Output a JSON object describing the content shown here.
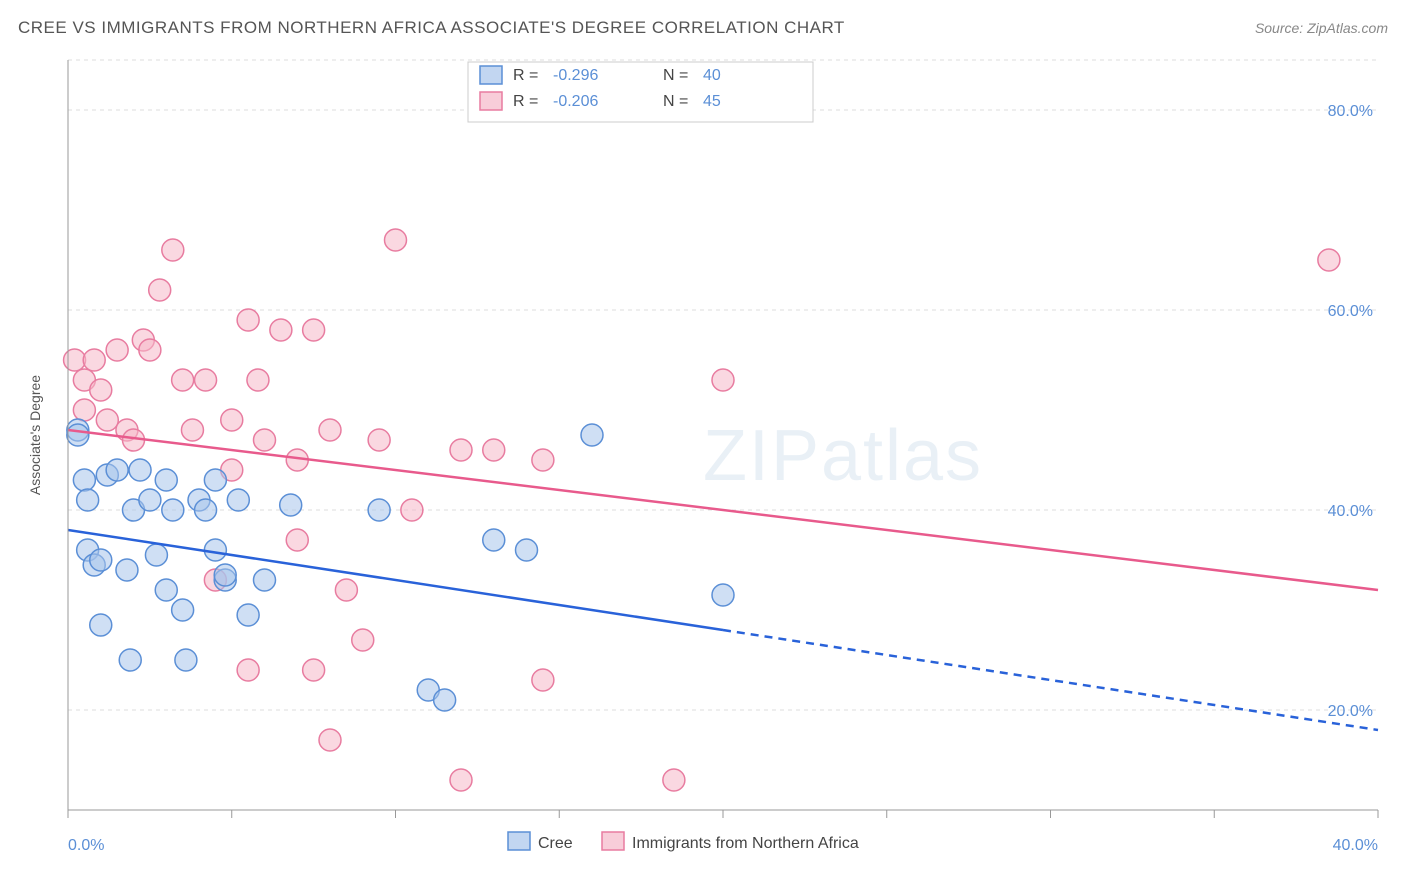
{
  "title": "CREE VS IMMIGRANTS FROM NORTHERN AFRICA ASSOCIATE'S DEGREE CORRELATION CHART",
  "source": "Source: ZipAtlas.com",
  "watermark": "ZIPatlas",
  "y_axis_label": "Associate's Degree",
  "chart": {
    "type": "scatter",
    "background_color": "#ffffff",
    "grid_color": "#dddddd",
    "axis_color": "#999999",
    "tick_label_color": "#5b8fd6",
    "xlim": [
      0,
      40
    ],
    "ylim": [
      10,
      85
    ],
    "x_ticks": [
      0,
      40
    ],
    "x_tick_labels": [
      "0.0%",
      "40.0%"
    ],
    "y_ticks": [
      20,
      40,
      60,
      80
    ],
    "y_tick_labels": [
      "20.0%",
      "40.0%",
      "60.0%",
      "80.0%"
    ],
    "minor_x_ticks": [
      5,
      10,
      15,
      20,
      25,
      30,
      35
    ],
    "series": [
      {
        "name": "Cree",
        "fill_color": "#a8c5eb",
        "stroke_color": "#5b8fd6",
        "fill_opacity": 0.55,
        "marker_radius": 11,
        "line_color": "#2962d9",
        "line_width": 2.5,
        "trend_start": {
          "x": 0,
          "y": 38
        },
        "trend_end_solid": {
          "x": 20,
          "y": 28
        },
        "trend_end_dashed": {
          "x": 40,
          "y": 18
        },
        "R": "-0.296",
        "N": "40",
        "points": [
          {
            "x": 0.3,
            "y": 48
          },
          {
            "x": 0.3,
            "y": 47.5
          },
          {
            "x": 0.5,
            "y": 43
          },
          {
            "x": 0.6,
            "y": 41
          },
          {
            "x": 0.6,
            "y": 36
          },
          {
            "x": 0.8,
            "y": 34.5
          },
          {
            "x": 1.0,
            "y": 35
          },
          {
            "x": 1.0,
            "y": 28.5
          },
          {
            "x": 1.2,
            "y": 43.5
          },
          {
            "x": 1.5,
            "y": 44
          },
          {
            "x": 1.8,
            "y": 34
          },
          {
            "x": 1.9,
            "y": 25
          },
          {
            "x": 2.0,
            "y": 40
          },
          {
            "x": 2.2,
            "y": 44
          },
          {
            "x": 2.5,
            "y": 41
          },
          {
            "x": 2.7,
            "y": 35.5
          },
          {
            "x": 3.0,
            "y": 43
          },
          {
            "x": 3.0,
            "y": 32
          },
          {
            "x": 3.2,
            "y": 40
          },
          {
            "x": 3.5,
            "y": 30
          },
          {
            "x": 3.6,
            "y": 25
          },
          {
            "x": 4.0,
            "y": 41
          },
          {
            "x": 4.2,
            "y": 40
          },
          {
            "x": 4.5,
            "y": 43
          },
          {
            "x": 4.5,
            "y": 36
          },
          {
            "x": 4.8,
            "y": 33
          },
          {
            "x": 4.8,
            "y": 33.5
          },
          {
            "x": 5.2,
            "y": 41
          },
          {
            "x": 5.5,
            "y": 29.5
          },
          {
            "x": 6.0,
            "y": 33
          },
          {
            "x": 6.8,
            "y": 40.5
          },
          {
            "x": 9.5,
            "y": 40
          },
          {
            "x": 11.0,
            "y": 22
          },
          {
            "x": 11.5,
            "y": 21
          },
          {
            "x": 13.0,
            "y": 37
          },
          {
            "x": 14.0,
            "y": 36
          },
          {
            "x": 16.0,
            "y": 47.5
          },
          {
            "x": 20.0,
            "y": 31.5
          }
        ]
      },
      {
        "name": "Immigrants from Northern Africa",
        "fill_color": "#f5b8c9",
        "stroke_color": "#e87ca0",
        "fill_opacity": 0.55,
        "marker_radius": 11,
        "line_color": "#e85a8c",
        "line_width": 2.5,
        "trend_start": {
          "x": 0,
          "y": 48
        },
        "trend_end_solid": {
          "x": 40,
          "y": 32
        },
        "R": "-0.206",
        "N": "45",
        "points": [
          {
            "x": 0.2,
            "y": 55
          },
          {
            "x": 0.5,
            "y": 53
          },
          {
            "x": 0.5,
            "y": 50
          },
          {
            "x": 0.8,
            "y": 55
          },
          {
            "x": 1.0,
            "y": 52
          },
          {
            "x": 1.2,
            "y": 49
          },
          {
            "x": 1.5,
            "y": 56
          },
          {
            "x": 1.8,
            "y": 48
          },
          {
            "x": 2.0,
            "y": 47
          },
          {
            "x": 2.3,
            "y": 57
          },
          {
            "x": 2.5,
            "y": 56
          },
          {
            "x": 2.8,
            "y": 62
          },
          {
            "x": 3.2,
            "y": 66
          },
          {
            "x": 3.5,
            "y": 53
          },
          {
            "x": 3.8,
            "y": 48
          },
          {
            "x": 4.2,
            "y": 53
          },
          {
            "x": 4.5,
            "y": 33
          },
          {
            "x": 5.0,
            "y": 49
          },
          {
            "x": 5.0,
            "y": 44
          },
          {
            "x": 5.5,
            "y": 59
          },
          {
            "x": 5.8,
            "y": 53
          },
          {
            "x": 5.5,
            "y": 24
          },
          {
            "x": 6.0,
            "y": 47
          },
          {
            "x": 6.5,
            "y": 58
          },
          {
            "x": 7.0,
            "y": 45
          },
          {
            "x": 7.0,
            "y": 37
          },
          {
            "x": 7.5,
            "y": 58
          },
          {
            "x": 7.5,
            "y": 24
          },
          {
            "x": 8.0,
            "y": 48
          },
          {
            "x": 8.5,
            "y": 32
          },
          {
            "x": 8.0,
            "y": 17
          },
          {
            "x": 9.0,
            "y": 27
          },
          {
            "x": 9.5,
            "y": 47
          },
          {
            "x": 10.0,
            "y": 67
          },
          {
            "x": 10.5,
            "y": 40
          },
          {
            "x": 12.0,
            "y": 46
          },
          {
            "x": 12.0,
            "y": 13
          },
          {
            "x": 13.0,
            "y": 46
          },
          {
            "x": 14.5,
            "y": 23
          },
          {
            "x": 14.5,
            "y": 45
          },
          {
            "x": 18.5,
            "y": 13
          },
          {
            "x": 20.0,
            "y": 53
          },
          {
            "x": 38.5,
            "y": 65
          }
        ]
      }
    ]
  },
  "legend_top": {
    "r_label": "R =",
    "n_label": "N ="
  },
  "legend_bottom": {
    "items": [
      "Cree",
      "Immigrants from Northern Africa"
    ]
  }
}
